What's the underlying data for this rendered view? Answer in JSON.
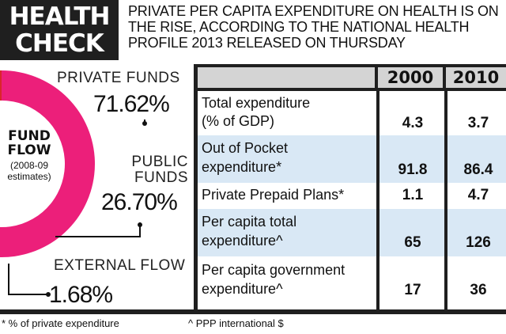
{
  "header": {
    "title_line1": "HEALTH",
    "title_line2": "CHECK",
    "description": "Private per capita expenditure on health is on the rise, according to the National Health Profile 2013 released on Thursday"
  },
  "fund_flow": {
    "title": "FUND FLOW",
    "subtitle": "(2008-09 estimates)"
  },
  "chart_data": [
    {
      "type": "pie",
      "title": "FUND FLOW",
      "subtitle": "(2008-09 estimates)",
      "categories": [
        "PRIVATE FUNDS",
        "PUBLIC FUNDS",
        "EXTERNAL FLOW"
      ],
      "values": [
        71.62,
        26.7,
        1.68
      ],
      "labels": [
        "71.62%",
        "26.70%",
        "1.68%"
      ],
      "colors": [
        "#ec1f7a",
        "#8cc63f",
        "#d9262b"
      ]
    },
    {
      "type": "table",
      "columns": [
        "",
        "2000",
        "2010"
      ],
      "rows": [
        {
          "label": [
            "Total expenditure",
            "(% of GDP)"
          ],
          "values": [
            "4.3",
            "3.7"
          ]
        },
        {
          "label": [
            "Out of Pocket",
            "expenditure*"
          ],
          "values": [
            "91.8",
            "86.4"
          ]
        },
        {
          "label": [
            "Private Prepaid Plans*"
          ],
          "values": [
            "1.1",
            "4.7"
          ]
        },
        {
          "label": [
            "Per capita total",
            "expenditure^"
          ],
          "values": [
            "65",
            "126"
          ]
        },
        {
          "label": [
            "Per capita government",
            "expenditure^"
          ],
          "values": [
            "17",
            "36"
          ]
        }
      ]
    }
  ],
  "footnotes": {
    "private": "* % of private expenditure",
    "ppp": "^ PPP international $"
  }
}
